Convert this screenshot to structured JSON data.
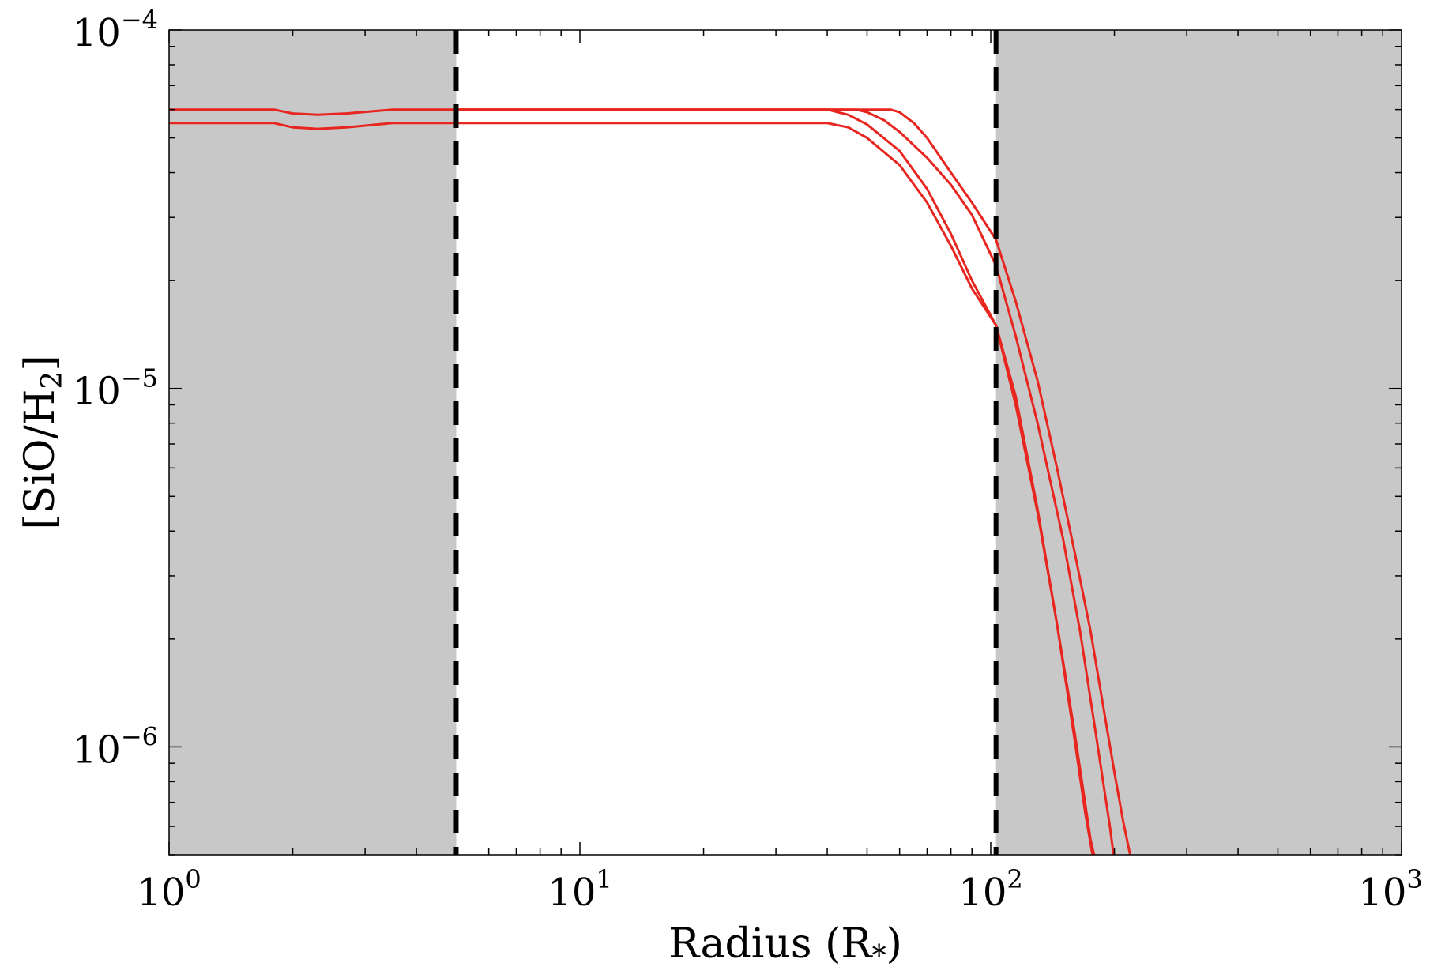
{
  "chart_data": {
    "type": "line",
    "xscale": "log",
    "yscale": "log",
    "xlim": [
      1,
      1000
    ],
    "ylim": [
      5e-07,
      0.0001
    ],
    "xlabel": "Radius (R",
    "xlabel_sub": "*",
    "xlabel_close": ")",
    "ylabel": "[SiO/H",
    "ylabel_sub": "2",
    "ylabel_close": "]",
    "x_ticks": [
      {
        "value": 1,
        "base": "10",
        "exp": "0"
      },
      {
        "value": 10,
        "base": "10",
        "exp": "1"
      },
      {
        "value": 100,
        "base": "10",
        "exp": "2"
      },
      {
        "value": 1000,
        "base": "10",
        "exp": "3"
      }
    ],
    "y_ticks": [
      {
        "value": 1e-06,
        "base": "10",
        "exp": "−6"
      },
      {
        "value": 1e-05,
        "base": "10",
        "exp": "−5"
      },
      {
        "value": 0.0001,
        "base": "10",
        "exp": "−4"
      }
    ],
    "shaded_regions": [
      {
        "x_from": 1,
        "x_to": 5,
        "color": "#c8c8c8"
      },
      {
        "x_from": 103,
        "x_to": 1000,
        "color": "#c8c8c8"
      }
    ],
    "vertical_lines": [
      {
        "x": 5,
        "style": "dashed",
        "color": "#000000"
      },
      {
        "x": 103,
        "style": "dashed",
        "color": "#000000"
      }
    ],
    "line_color": "#e8251f",
    "series": [
      {
        "x": [
          1,
          1.8,
          2,
          2.3,
          2.7,
          3.5,
          5,
          10,
          30,
          40,
          50,
          57,
          60,
          65,
          70,
          80,
          90,
          103,
          115,
          130,
          145,
          160,
          175,
          190,
          200,
          210,
          220
        ],
        "y": [
          6e-05,
          6e-05,
          5.85e-05,
          5.8e-05,
          5.85e-05,
          6e-05,
          6e-05,
          6e-05,
          6e-05,
          6e-05,
          6e-05,
          6e-05,
          5.9e-05,
          5.5e-05,
          5e-05,
          4e-05,
          3.3e-05,
          2.6e-05,
          1.75e-05,
          1.05e-05,
          6e-06,
          3.5e-06,
          2.1e-06,
          1.2e-06,
          8.5e-07,
          6.2e-07,
          4.8e-07
        ]
      },
      {
        "x": [
          5,
          10,
          30,
          40,
          47,
          50,
          55,
          60,
          70,
          80,
          90,
          103,
          115,
          130,
          150,
          165,
          180,
          195,
          200
        ],
        "y": [
          6e-05,
          6e-05,
          6e-05,
          6e-05,
          6e-05,
          5.9e-05,
          5.6e-05,
          5.2e-05,
          4.4e-05,
          3.7e-05,
          3.05e-05,
          2.2e-05,
          1.4e-05,
          8e-06,
          3.8e-06,
          2.1e-06,
          1.1e-06,
          6e-07,
          4.8e-07
        ]
      },
      {
        "x": [
          1,
          1.8,
          2,
          2.3,
          2.7,
          3.5,
          5,
          10,
          30,
          40,
          45,
          50,
          60,
          70,
          80,
          90,
          103,
          115,
          130,
          145,
          160,
          175,
          180
        ],
        "y": [
          5.5e-05,
          5.5e-05,
          5.35e-05,
          5.3e-05,
          5.35e-05,
          5.5e-05,
          5.5e-05,
          5.5e-05,
          5.5e-05,
          5.5e-05,
          5.35e-05,
          5e-05,
          4.2e-05,
          3.3e-05,
          2.5e-05,
          1.9e-05,
          1.5e-05,
          9e-06,
          4.5e-06,
          2.2e-06,
          1.1e-06,
          5.5e-07,
          4.8e-07
        ]
      },
      {
        "x": [
          5,
          10,
          30,
          40,
          45,
          50,
          60,
          70,
          80,
          90,
          103,
          115,
          130,
          145,
          160,
          170,
          178
        ],
        "y": [
          6e-05,
          6e-05,
          6e-05,
          6e-05,
          5.8e-05,
          5.45e-05,
          4.6e-05,
          3.6e-05,
          2.7e-05,
          2e-05,
          1.5e-05,
          9.5e-06,
          4.6e-06,
          2.2e-06,
          1.05e-06,
          6.5e-07,
          4.8e-07
        ]
      }
    ]
  }
}
